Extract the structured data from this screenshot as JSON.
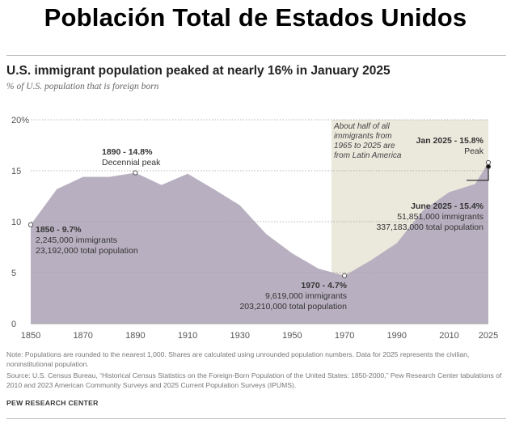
{
  "slide_title": "Población Total de  Estados Unidos",
  "chart_data": {
    "type": "area",
    "title": "U.S. immigrant population peaked at nearly 16% in January 2025",
    "subtitle": "% of U.S. population that is foreign born",
    "x": [
      1850,
      1860,
      1870,
      1880,
      1890,
      1900,
      1910,
      1920,
      1930,
      1940,
      1950,
      1960,
      1970,
      1980,
      1990,
      2000,
      2010,
      2020,
      2024,
      2025
    ],
    "values": [
      9.7,
      13.2,
      14.4,
      14.4,
      14.8,
      13.6,
      14.7,
      13.2,
      11.6,
      8.8,
      6.9,
      5.4,
      4.7,
      6.2,
      7.9,
      11.1,
      12.9,
      13.7,
      15.4,
      15.8
    ],
    "ylim": [
      0,
      20
    ],
    "yticks": [
      0,
      5,
      10,
      15,
      20
    ],
    "ytick_labels": [
      "0",
      "5",
      "10",
      "15",
      "20%"
    ],
    "xticks": [
      1850,
      1870,
      1890,
      1910,
      1930,
      1950,
      1970,
      1990,
      2010,
      2025
    ],
    "xtick_labels": [
      "1850",
      "1870",
      "1890",
      "1910",
      "1930",
      "1950",
      "1970",
      "1990",
      "2010",
      "2025"
    ],
    "shaded_range": [
      1965,
      2025
    ],
    "shaded_note": [
      "About half of all",
      "immigrants from",
      "1965 to 2025 are",
      "from Latin America"
    ],
    "colors": {
      "area": "#b8b0c0",
      "shade": "#ebe8dc",
      "grid": "#9e9e9e",
      "text": "#333333",
      "dot_fill": "#ffffff",
      "dot_stroke": "#555555"
    },
    "annotations": {
      "a1850": {
        "x": 1850,
        "y": 9.7,
        "title": "1850 - 9.7%",
        "line1": "2,245,000 immigrants",
        "line2": "23,192,000 total population"
      },
      "a1890": {
        "x": 1890,
        "y": 14.8,
        "title": "1890 - 14.8%",
        "line1": "Decennial peak"
      },
      "a1970": {
        "x": 1970,
        "y": 4.7,
        "title": "1970 - 4.7%",
        "line1": "9,619,000 immigrants",
        "line2": "203,210,000 total population"
      },
      "a2025p": {
        "x": 2025,
        "y": 15.8,
        "title": "Jan 2025 - 15.8%",
        "line1": "Peak"
      },
      "a2025j": {
        "x": 2025,
        "y": 15.4,
        "title": "June 2025 - 15.4%",
        "line1": "51,851,000 immigrants",
        "line2": "337,183,000 total population"
      }
    }
  },
  "footnotes": {
    "note": "Note: Populations are rounded to the nearest 1,000. Shares are calculated using unrounded population numbers. Data for 2025 represents the civilian, noninstitutional population.",
    "source": "Source: U.S. Census Bureau, “Historical Census Statistics on the Foreign-Born Population of the United States: 1850-2000,” Pew Research Center tabulations of 2010 and 2023 American Community Surveys and 2025 Current Population Surveys (IPUMS).",
    "credit": "PEW RESEARCH CENTER"
  }
}
